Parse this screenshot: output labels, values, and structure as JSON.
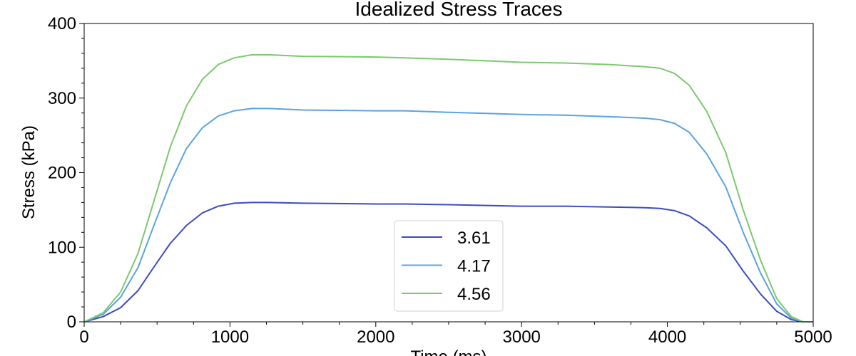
{
  "chart_data": {
    "type": "line",
    "title": "Idealized Stress Traces",
    "xlabel": "Time (ms)",
    "ylabel": "Stress (kPa)",
    "xlim": [
      0,
      5000
    ],
    "ylim": [
      0,
      400
    ],
    "xticks": [
      0,
      1000,
      2000,
      3000,
      4000,
      5000
    ],
    "yticks": [
      0,
      100,
      200,
      300,
      400
    ],
    "grid": false,
    "legend_position": "lower-center",
    "x": [
      0,
      130,
      250,
      370,
      480,
      590,
      700,
      810,
      920,
      1030,
      1150,
      1270,
      1500,
      2000,
      2200,
      2500,
      3000,
      3300,
      3600,
      3850,
      3950,
      4050,
      4150,
      4270,
      4400,
      4520,
      4640,
      4750,
      4850,
      4930,
      5000
    ],
    "series": [
      {
        "name": "3.61",
        "color": "#3b4cc0",
        "values": [
          0,
          7,
          19,
          42,
          74,
          105,
          129,
          146,
          155,
          159,
          160,
          160,
          159,
          158,
          158,
          157,
          155,
          155,
          154,
          153,
          152,
          149,
          142,
          126,
          102,
          68,
          37,
          14,
          3,
          0,
          0
        ]
      },
      {
        "name": "4.17",
        "color": "#5ba3e0",
        "values": [
          0,
          10,
          33,
          73,
          130,
          186,
          232,
          260,
          276,
          283,
          286,
          286,
          284,
          283,
          283,
          281,
          278,
          277,
          275,
          273,
          271,
          266,
          254,
          225,
          181,
          120,
          65,
          24,
          5,
          0,
          0
        ]
      },
      {
        "name": "4.56",
        "color": "#7bc96f",
        "values": [
          0,
          12,
          40,
          92,
          163,
          234,
          289,
          325,
          345,
          354,
          358,
          358,
          356,
          355,
          354,
          352,
          348,
          347,
          345,
          342,
          340,
          333,
          317,
          282,
          227,
          150,
          82,
          31,
          7,
          0,
          0
        ]
      }
    ]
  }
}
